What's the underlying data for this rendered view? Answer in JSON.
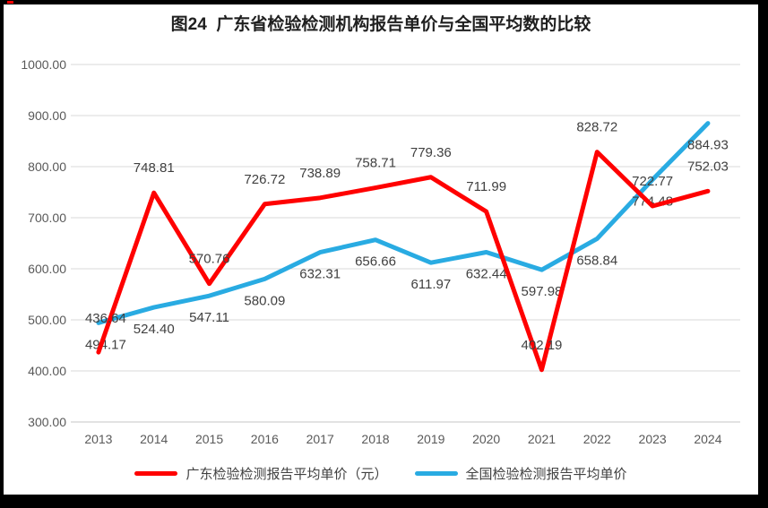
{
  "title": "图24  广东省检验检测机构报告单价与全国平均数的比较",
  "frame": {
    "border_color": "#000000",
    "accent_dash_color": "#ff0000"
  },
  "chart_data": {
    "type": "line",
    "title": "图24  广东省检验检测机构报告单价与全国平均数的比较",
    "categories": [
      "2013",
      "2014",
      "2015",
      "2016",
      "2017",
      "2018",
      "2019",
      "2020",
      "2021",
      "2022",
      "2023",
      "2024"
    ],
    "series": [
      {
        "name": "广东检验检测报告平均单价（元）",
        "color": "#ff0000",
        "label_position": "above",
        "values": [
          436.64,
          748.81,
          570.76,
          726.72,
          738.89,
          758.71,
          779.36,
          711.99,
          402.19,
          828.72,
          722.77,
          752.03
        ]
      },
      {
        "name": "全国检验检测报告平均单价",
        "color": "#29abe2",
        "label_position": "below",
        "values": [
          494.17,
          524.4,
          547.11,
          580.09,
          632.31,
          656.66,
          611.97,
          632.44,
          597.98,
          658.84,
          774.48,
          884.93
        ]
      }
    ],
    "y_axis": {
      "min": 300,
      "max": 1000,
      "step": 100,
      "ticks": [
        "1000.00",
        "900.00",
        "800.00",
        "700.00",
        "600.00",
        "500.00",
        "400.00",
        "300.00"
      ]
    },
    "xlabel": "",
    "ylabel": "",
    "grid": true,
    "legend_position": "bottom",
    "gridline_color": "#d9d9d9",
    "axis_line_color": "#c6c6c6",
    "tick_label_color": "#595959",
    "data_label_color": "#404040"
  }
}
